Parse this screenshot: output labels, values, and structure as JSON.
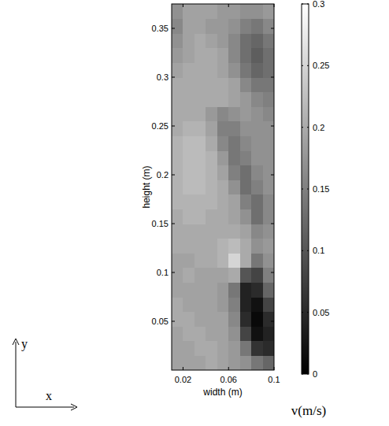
{
  "chart_data": {
    "type": "heatmap",
    "x_label": "width (m)",
    "y_label": "height (m)",
    "xlim": [
      0.01,
      0.1
    ],
    "ylim": [
      0,
      0.375
    ],
    "xticks": [
      0.02,
      0.06,
      0.1
    ],
    "yticks": [
      0.05,
      0.1,
      0.15,
      0.2,
      0.25,
      0.3,
      0.35
    ],
    "x_edges": [
      0.01,
      0.02,
      0.03,
      0.04,
      0.05,
      0.06,
      0.07,
      0.08,
      0.09,
      0.1
    ],
    "y_edges": [
      0,
      0.015,
      0.03,
      0.045,
      0.06,
      0.075,
      0.09,
      0.105,
      0.12,
      0.135,
      0.15,
      0.165,
      0.18,
      0.195,
      0.21,
      0.225,
      0.24,
      0.255,
      0.27,
      0.285,
      0.3,
      0.315,
      0.33,
      0.345,
      0.36,
      0.375
    ],
    "cells": [
      [
        0.19,
        0.19,
        0.19,
        0.2,
        0.19,
        0.18,
        0.17,
        0.14,
        0.12
      ],
      [
        0.19,
        0.19,
        0.2,
        0.2,
        0.19,
        0.18,
        0.14,
        0.06,
        0.05
      ],
      [
        0.19,
        0.2,
        0.2,
        0.19,
        0.19,
        0.17,
        0.08,
        0.02,
        0.04
      ],
      [
        0.2,
        0.2,
        0.19,
        0.19,
        0.19,
        0.16,
        0.05,
        0.01,
        0.05
      ],
      [
        0.2,
        0.19,
        0.19,
        0.19,
        0.18,
        0.15,
        0.04,
        0.02,
        0.08
      ],
      [
        0.19,
        0.19,
        0.19,
        0.19,
        0.18,
        0.14,
        0.04,
        0.05,
        0.12
      ],
      [
        0.19,
        0.2,
        0.19,
        0.19,
        0.19,
        0.2,
        0.1,
        0.08,
        0.15
      ],
      [
        0.19,
        0.19,
        0.2,
        0.2,
        0.21,
        0.25,
        0.2,
        0.14,
        0.17
      ],
      [
        0.2,
        0.2,
        0.2,
        0.2,
        0.21,
        0.22,
        0.2,
        0.17,
        0.18
      ],
      [
        0.2,
        0.2,
        0.2,
        0.2,
        0.2,
        0.2,
        0.19,
        0.16,
        0.17
      ],
      [
        0.2,
        0.21,
        0.21,
        0.2,
        0.2,
        0.19,
        0.17,
        0.13,
        0.16
      ],
      [
        0.21,
        0.21,
        0.21,
        0.21,
        0.2,
        0.19,
        0.15,
        0.13,
        0.16
      ],
      [
        0.21,
        0.22,
        0.22,
        0.21,
        0.2,
        0.17,
        0.13,
        0.15,
        0.17
      ],
      [
        0.21,
        0.22,
        0.22,
        0.21,
        0.19,
        0.15,
        0.13,
        0.16,
        0.17
      ],
      [
        0.21,
        0.22,
        0.22,
        0.21,
        0.18,
        0.14,
        0.15,
        0.17,
        0.17
      ],
      [
        0.21,
        0.22,
        0.22,
        0.2,
        0.16,
        0.14,
        0.16,
        0.17,
        0.17
      ],
      [
        0.2,
        0.21,
        0.21,
        0.19,
        0.15,
        0.15,
        0.17,
        0.17,
        0.17
      ],
      [
        0.2,
        0.2,
        0.2,
        0.18,
        0.16,
        0.17,
        0.18,
        0.17,
        0.16
      ],
      [
        0.2,
        0.2,
        0.2,
        0.2,
        0.2,
        0.19,
        0.18,
        0.16,
        0.15
      ],
      [
        0.2,
        0.2,
        0.2,
        0.2,
        0.2,
        0.19,
        0.16,
        0.14,
        0.14
      ],
      [
        0.19,
        0.2,
        0.2,
        0.2,
        0.19,
        0.17,
        0.14,
        0.12,
        0.13
      ],
      [
        0.18,
        0.19,
        0.2,
        0.2,
        0.19,
        0.16,
        0.13,
        0.11,
        0.13
      ],
      [
        0.17,
        0.19,
        0.2,
        0.19,
        0.18,
        0.16,
        0.13,
        0.12,
        0.14
      ],
      [
        0.16,
        0.19,
        0.19,
        0.18,
        0.18,
        0.17,
        0.15,
        0.14,
        0.16
      ],
      [
        0.17,
        0.19,
        0.19,
        0.19,
        0.18,
        0.18,
        0.17,
        0.17,
        0.18
      ]
    ],
    "colorbar": {
      "label": "v(m/s)",
      "range": [
        0,
        0.3
      ],
      "ticks": [
        0,
        0.05,
        0.1,
        0.15,
        0.2,
        0.25,
        0.3
      ]
    },
    "annotations": [
      "y",
      "x"
    ]
  }
}
